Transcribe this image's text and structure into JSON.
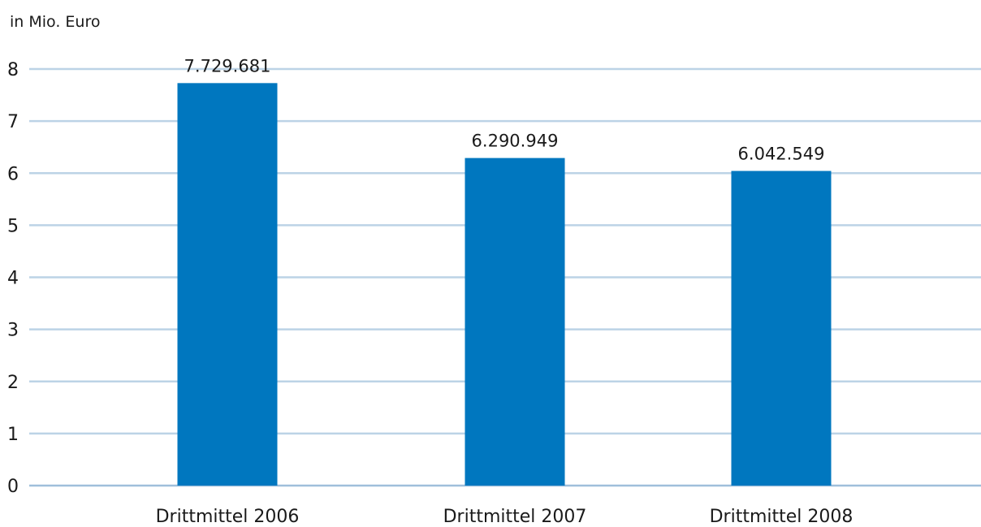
{
  "chart_data": {
    "type": "bar",
    "title": "",
    "unit_label": "in Mio. Euro",
    "xlabel": "",
    "ylabel": "",
    "categories": [
      "Drittmittel 2006",
      "Drittmittel 2007",
      "Drittmittel 2008"
    ],
    "values": [
      7.729681,
      6.290949,
      6.042549
    ],
    "data_labels": [
      "7.729.681",
      "6.290.949",
      "6.042.549"
    ],
    "ylim": [
      0,
      8
    ],
    "yticks": [
      0,
      1,
      2,
      3,
      4,
      5,
      6,
      7,
      8
    ],
    "grid": true,
    "legend": "none",
    "colors": {
      "bar": "#0077bf",
      "grid": "#bcd3e6",
      "axis": "#9fbfdb",
      "text": "#1a1a1a"
    }
  }
}
